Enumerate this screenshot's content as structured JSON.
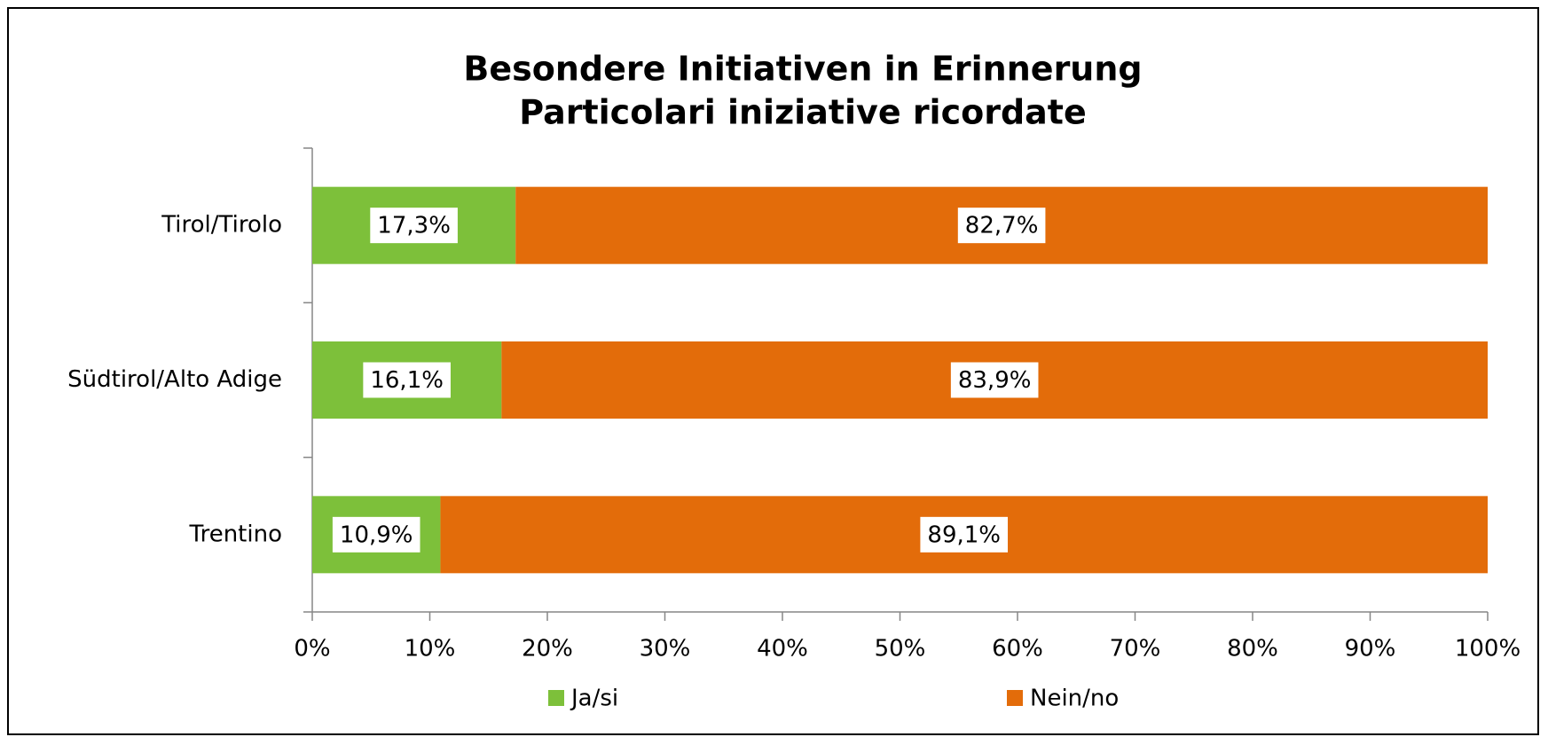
{
  "chart_data": {
    "type": "stacked-barh",
    "title": [
      "Besondere Initiativen in Erinnerung",
      "Particolari iniziative ricordate"
    ],
    "categories": [
      "Tirol/Tirolo",
      "Südtirol/Alto Adige",
      "Trentino"
    ],
    "series": [
      {
        "name": "Ja/si",
        "color": "#7dc03a",
        "values": [
          17.3,
          16.1,
          10.9
        ],
        "value_labels": [
          "17,3%",
          "16,1%",
          "10,9%"
        ]
      },
      {
        "name": "Nein/no",
        "color": "#e36c0a",
        "values": [
          82.7,
          83.9,
          89.1
        ],
        "value_labels": [
          "82,7%",
          "83,9%",
          "89,1%"
        ]
      }
    ],
    "xlim": [
      0,
      100
    ],
    "xticks": [
      {
        "value": 0,
        "label": "0%"
      },
      {
        "value": 10,
        "label": "10%"
      },
      {
        "value": 20,
        "label": "20%"
      },
      {
        "value": 30,
        "label": "30%"
      },
      {
        "value": 40,
        "label": "40%"
      },
      {
        "value": 50,
        "label": "50%"
      },
      {
        "value": 60,
        "label": "60%"
      },
      {
        "value": 70,
        "label": "70%"
      },
      {
        "value": 80,
        "label": "80%"
      },
      {
        "value": 90,
        "label": "90%"
      },
      {
        "value": 100,
        "label": "100%"
      }
    ],
    "legend": "bottom"
  }
}
